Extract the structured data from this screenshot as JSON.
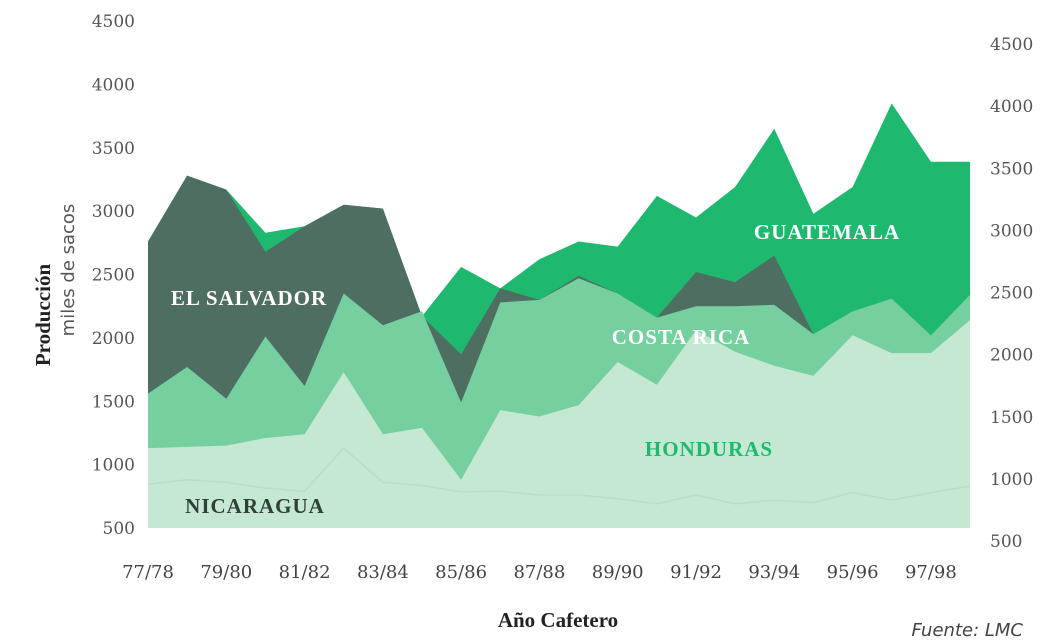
{
  "chart_data": {
    "type": "area",
    "stacked": true,
    "xlabel": "Año Cafetero",
    "ylabel": "Producción",
    "ylabel_sub": "miles de sacos",
    "source": "Fuente: LMC",
    "ylim": [
      500,
      4500
    ],
    "left_ticks": [
      "4500",
      "4000",
      "3500",
      "3000",
      "2500",
      "2000",
      "1500",
      "1000",
      "500"
    ],
    "right_ticks": [
      "4500",
      "4000",
      "3500",
      "3000",
      "2500",
      "2000",
      "1500",
      "1000",
      "500"
    ],
    "x_tick_labels": [
      "77/78",
      "79/80",
      "81/82",
      "83/84",
      "85/86",
      "87/88",
      "89/90",
      "91/92",
      "93/94",
      "95/96",
      "97/98"
    ],
    "categories": [
      "77/78",
      "78/79",
      "79/80",
      "80/81",
      "81/82",
      "82/83",
      "83/84",
      "84/85",
      "85/86",
      "86/87",
      "87/88",
      "88/89",
      "89/90",
      "90/91",
      "91/92",
      "92/93",
      "93/94",
      "94/95",
      "95/96",
      "96/97",
      "97/98",
      "98/99"
    ],
    "series": [
      {
        "name": "NICARAGUA",
        "color": "#dcefe3",
        "totals": [
          1130,
          1140,
          1150,
          1210,
          1240,
          1730,
          1240,
          1290,
          880,
          1430,
          1380,
          1470,
          1810,
          1630,
          2060,
          1890,
          1780,
          1700,
          2020,
          1880,
          1880,
          2140
        ]
      },
      {
        "name": "HONDURAS",
        "color": "#c4e8d2",
        "totals": [
          1130,
          1140,
          1150,
          1210,
          1240,
          1730,
          1240,
          1290,
          880,
          1430,
          1380,
          1470,
          1810,
          1630,
          2060,
          1890,
          1780,
          1700,
          2020,
          1880,
          1880,
          2140
        ]
      },
      {
        "name": "COSTA RICA",
        "color": "#75cf9f",
        "totals": [
          1560,
          1770,
          1520,
          2010,
          1620,
          2350,
          2100,
          2210,
          1490,
          2280,
          2300,
          2470,
          2350,
          2160,
          2250,
          2250,
          2260,
          2030,
          2210,
          2310,
          2020,
          2340
        ]
      },
      {
        "name": "EL SALVADOR",
        "color": "#4f6e62",
        "totals": [
          2760,
          3280,
          3170,
          2680,
          2880,
          3050,
          3020,
          2170,
          1870,
          2390,
          2300,
          2490,
          2350,
          2160,
          2520,
          2440,
          2650,
          2030,
          2210,
          2310,
          2020,
          2340
        ]
      },
      {
        "name": "GUATEMALA",
        "color": "#1fb86f",
        "totals": [
          2760,
          3280,
          3170,
          2830,
          2880,
          3050,
          3020,
          2170,
          2560,
          2390,
          2620,
          2760,
          2720,
          3120,
          2950,
          3190,
          3650,
          2980,
          3190,
          3850,
          3390,
          3390
        ]
      }
    ],
    "labels": {
      "guatemala": "GUATEMALA",
      "el_salvador": "EL SALVADOR",
      "costa_rica": "COSTA RICA",
      "honduras": "HONDURAS",
      "nicaragua": "NICARAGUA"
    },
    "grid": false,
    "legend": "inline labels"
  }
}
